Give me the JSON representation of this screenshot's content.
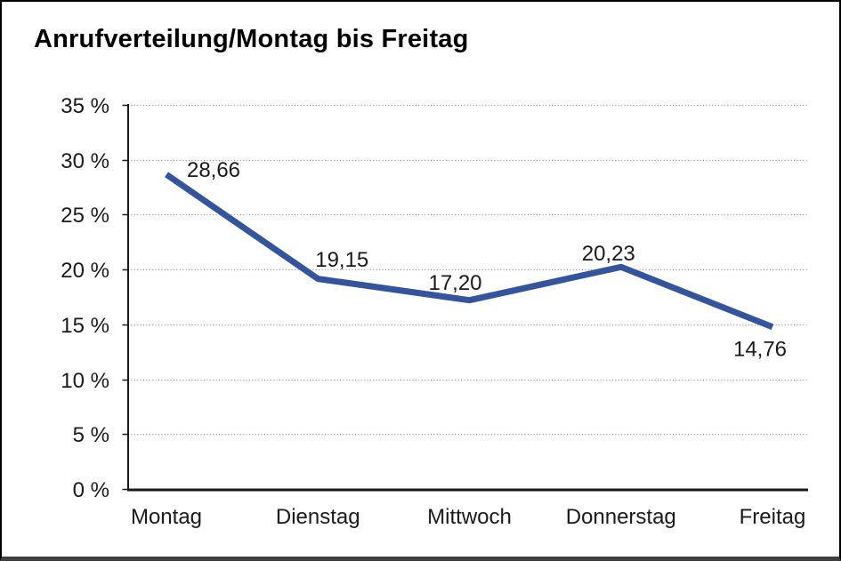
{
  "chart_data": {
    "type": "line",
    "title": "Anrufverteilung/Montag bis Freitag",
    "categories": [
      "Montag",
      "Dienstag",
      "Mittwoch",
      "Donnerstag",
      "Freitag"
    ],
    "values": [
      28.66,
      19.15,
      17.2,
      20.23,
      14.76
    ],
    "data_labels": [
      "28,66",
      "19,15",
      "17,20",
      "20,23",
      "14,76"
    ],
    "xlabel": "",
    "ylabel": "",
    "ylim": [
      0,
      35
    ],
    "y_step": 5,
    "y_tick_labels": [
      "0 %",
      "5 %",
      "10 %",
      "15 %",
      "20 %",
      "25 %",
      "30 %",
      "35 %"
    ],
    "grid": "horizontal-dotted",
    "legend": "none",
    "colors": {
      "line": "#34549E",
      "grid": "#8F8F8F",
      "axis": "#1A1A1A",
      "text": "#1A1A1A",
      "title": "#000000",
      "background": "#FFFFFF",
      "frame_border": "#000000",
      "frame_bottom": "#3F3F3F"
    }
  }
}
